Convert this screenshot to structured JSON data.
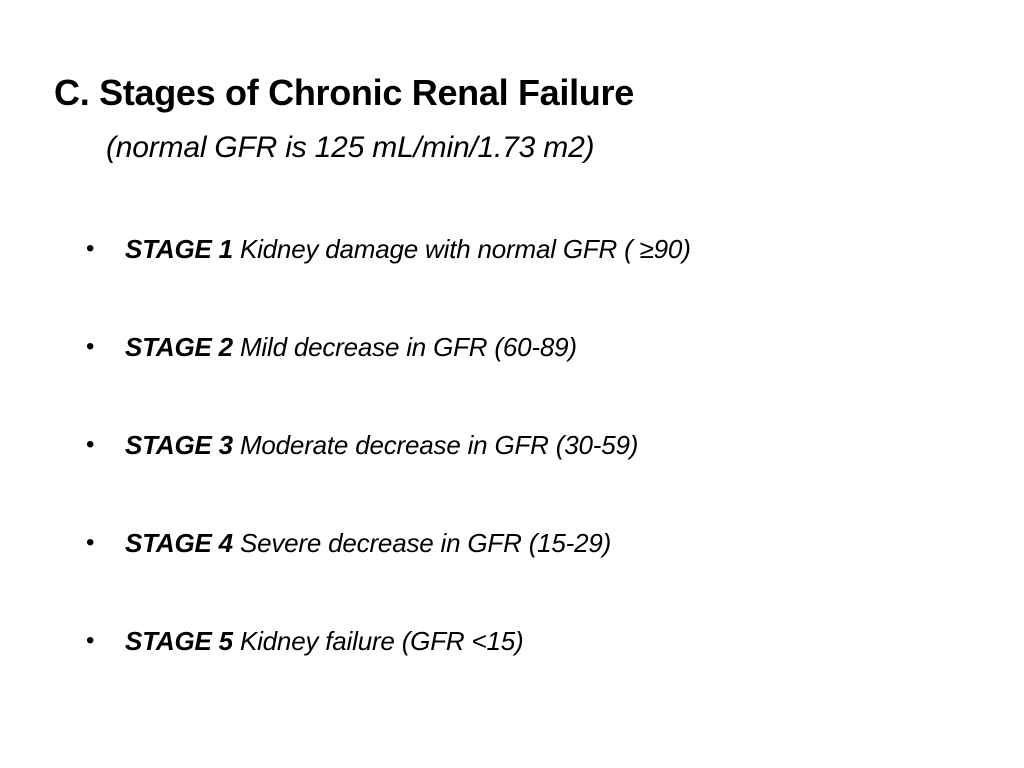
{
  "slide": {
    "title": "C. Stages of Chronic Renal Failure",
    "subtitle": "(normal GFR is 125 mL/min/1.73 m2)",
    "bullet_glyph": "•",
    "stages": [
      {
        "label": "STAGE 1",
        "description": "Kidney damage with normal GFR ( ≥90)"
      },
      {
        "label": "STAGE 2",
        "description": "Mild decrease in GFR (60-89)"
      },
      {
        "label": "STAGE 3",
        "description": "Moderate decrease in GFR (30-59)"
      },
      {
        "label": "STAGE 4",
        "description": "Severe decrease in GFR (15-29)"
      },
      {
        "label": "STAGE 5",
        "description": "Kidney failure (GFR <15)"
      }
    ]
  }
}
